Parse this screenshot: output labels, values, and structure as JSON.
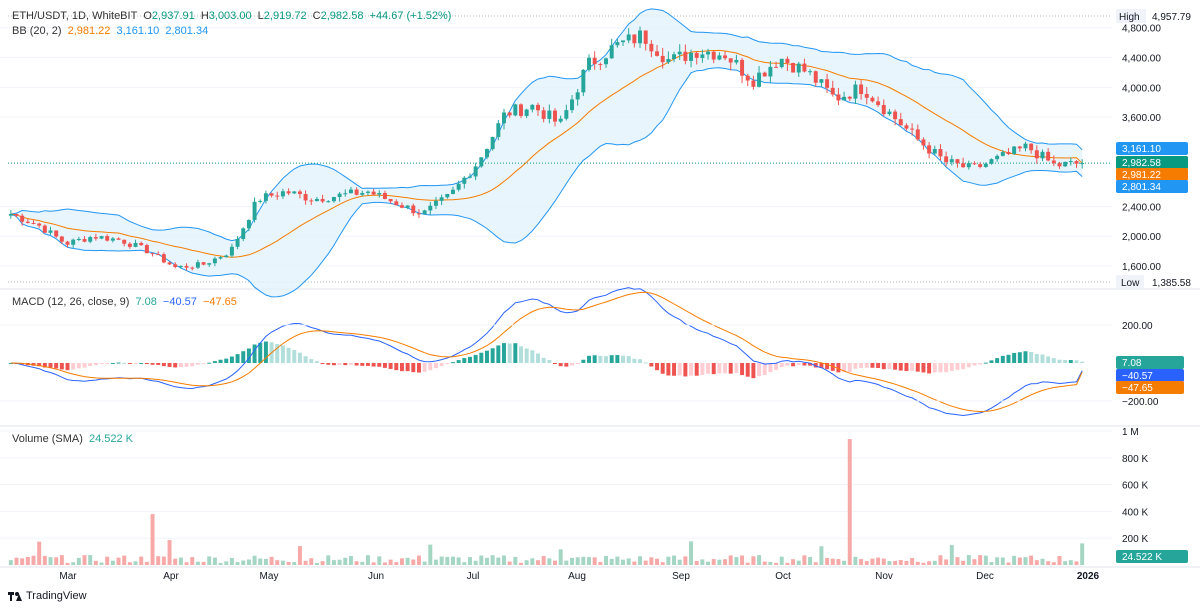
{
  "header": {
    "symbol": "ETH/USDT, 1D, WhiteBIT",
    "o_label": "O",
    "o_value": "2,937.91",
    "h_label": "H",
    "h_value": "3,003.00",
    "l_label": "L",
    "l_value": "2,919.72",
    "c_label": "C",
    "c_value": "2,982.58",
    "change": "+44.67 (+1.52%)"
  },
  "bb_legend": {
    "label": "BB (20, 2)",
    "basis": "2,981.22",
    "upper": "3,161.10",
    "lower": "2,801.34"
  },
  "macd_legend": {
    "label": "MACD (12, 26, close, 9)",
    "hist": "7.08",
    "macd": "−40.57",
    "signal": "−47.65"
  },
  "volume_legend": {
    "label": "Volume (SMA)",
    "value": "24.522 K"
  },
  "price_axis": {
    "ticks": [
      "4,800.00",
      "4,400.00",
      "4,000.00",
      "3,600.00",
      "2,400.00",
      "2,000.00",
      "1,600.00"
    ],
    "high_label": "High",
    "high_value": "4,957.79",
    "low_label": "Low",
    "low_value": "1,385.58",
    "badges": [
      "3,161.10",
      "2,982.58",
      "2,981.22",
      "2,801.34"
    ]
  },
  "macd_axis": {
    "ticks": [
      "200.00",
      "−200.00"
    ],
    "badges": [
      "7.08",
      "−40.57",
      "−47.65"
    ]
  },
  "volume_axis": {
    "ticks": [
      "1 M",
      "800 K",
      "600 K",
      "400 K",
      "200 K"
    ],
    "badge": "24.522 K"
  },
  "time_axis": [
    "Mar",
    "Apr",
    "May",
    "Jun",
    "Jul",
    "Aug",
    "Sep",
    "Oct",
    "Nov",
    "Dec",
    "2026"
  ],
  "brand": "TradingView",
  "colors": {
    "up": "#26a69a",
    "down": "#ef5350",
    "basis": "#f57c00",
    "band": "#2196f3",
    "bandFill": "#e3f2fd",
    "macd": "#2962ff",
    "signal": "#f57c00",
    "grid": "#f0f3fa"
  },
  "chart_data": {
    "type": "candlestick",
    "price_range": [
      1385.58,
      4957.79
    ],
    "last": {
      "open": 2937.91,
      "high": 3003.0,
      "low": 2919.72,
      "close": 2982.58
    },
    "bollinger": {
      "basis": 2981.22,
      "upper": 3161.1,
      "lower": 2801.34
    },
    "macd": {
      "hist": 7.08,
      "macd": -40.57,
      "signal": -47.65
    },
    "volume_sma": "24.522 K",
    "close_path": [
      [
        "Mar",
        2300
      ],
      [
        "Mar",
        2150
      ],
      [
        "Mar",
        1900
      ],
      [
        "Mar",
        2000
      ],
      [
        "Apr",
        1950
      ],
      [
        "Apr",
        1800
      ],
      [
        "Apr",
        1580
      ],
      [
        "Apr",
        1620
      ],
      [
        "May",
        1800
      ],
      [
        "May",
        2500
      ],
      [
        "May",
        2600
      ],
      [
        "May",
        2500
      ],
      [
        "Jun",
        2550
      ],
      [
        "Jun",
        2600
      ],
      [
        "Jun",
        2450
      ],
      [
        "Jun",
        2300
      ],
      [
        "Jul",
        2550
      ],
      [
        "Jul",
        3000
      ],
      [
        "Jul",
        3650
      ],
      [
        "Jul",
        3750
      ],
      [
        "Aug",
        3500
      ],
      [
        "Aug",
        4300
      ],
      [
        "Aug",
        4550
      ],
      [
        "Aug",
        4700
      ],
      [
        "Sep",
        4350
      ],
      [
        "Sep",
        4500
      ],
      [
        "Sep",
        4450
      ],
      [
        "Sep",
        4100
      ],
      [
        "Oct",
        4400
      ],
      [
        "Oct",
        4200
      ],
      [
        "Oct",
        3850
      ],
      [
        "Oct",
        4000
      ],
      [
        "Nov",
        3650
      ],
      [
        "Nov",
        3300
      ],
      [
        "Nov",
        3000
      ],
      [
        "Nov",
        2900
      ],
      [
        "Dec",
        3050
      ],
      [
        "Dec",
        3200
      ],
      [
        "Dec",
        2950
      ],
      [
        "Dec",
        2980
      ]
    ]
  }
}
